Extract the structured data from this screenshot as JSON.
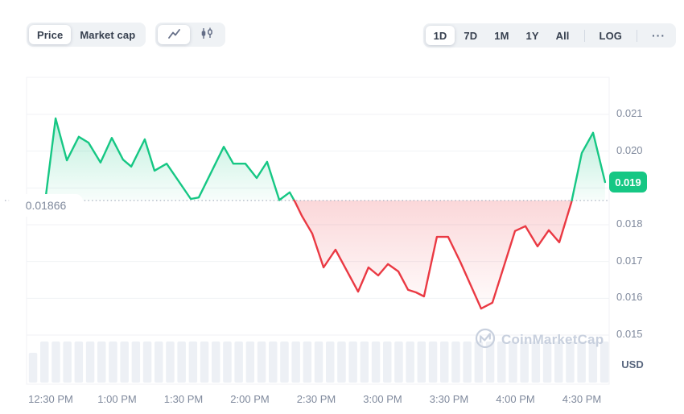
{
  "toolbar": {
    "price_label": "Price",
    "market_cap_label": "Market cap",
    "chart_type_selected": "line",
    "ranges": [
      "1D",
      "7D",
      "1M",
      "1Y",
      "All"
    ],
    "selected_range": "1D",
    "log_label": "LOG",
    "more_label": "···"
  },
  "chart_data": {
    "type": "area",
    "title": "",
    "xlabel": "",
    "ylabel": "USD",
    "x_axis": {
      "tick_labels": [
        "12:30 PM",
        "1:00 PM",
        "1:30 PM",
        "2:00 PM",
        "2:30 PM",
        "3:00 PM",
        "3:30 PM",
        "4:00 PM",
        "4:30 PM"
      ],
      "tick_minutes": [
        30,
        60,
        90,
        120,
        150,
        180,
        210,
        240,
        270
      ]
    },
    "y_axis": {
      "tick_labels": [
        "0.021",
        "0.020",
        "0.019",
        "0.018",
        "0.017",
        "0.016",
        "0.015"
      ],
      "tick_prices": [
        0.021,
        0.02,
        0.019,
        0.018,
        0.017,
        0.016,
        0.015
      ],
      "ylim": [
        0.0147,
        0.0217
      ],
      "unit": "USD"
    },
    "baseline": {
      "label": "0.01866",
      "price": 0.01866
    },
    "current_price": {
      "label": "0.019",
      "price": 0.01916
    },
    "colors": {
      "up": "#16c784",
      "down": "#ea3943",
      "grid": "#f0f2f5",
      "dotted": "#a9b1c0",
      "volume": "#edf0f5"
    },
    "watermark": "CoinMarketCap",
    "series": [
      {
        "m": 27.8,
        "p": 0.01879
      },
      {
        "m": 32.2,
        "p": 0.02089
      },
      {
        "m": 37.3,
        "p": 0.01975
      },
      {
        "m": 42.7,
        "p": 0.02039
      },
      {
        "m": 47.1,
        "p": 0.02023
      },
      {
        "m": 52.5,
        "p": 0.01969
      },
      {
        "m": 57.6,
        "p": 0.02036
      },
      {
        "m": 62.7,
        "p": 0.01977
      },
      {
        "m": 66.4,
        "p": 0.01958
      },
      {
        "m": 72.5,
        "p": 0.02032
      },
      {
        "m": 76.9,
        "p": 0.01947
      },
      {
        "m": 82.4,
        "p": 0.01966
      },
      {
        "m": 93.3,
        "p": 0.0187
      },
      {
        "m": 96.9,
        "p": 0.01874
      },
      {
        "m": 108.2,
        "p": 0.02012
      },
      {
        "m": 112.5,
        "p": 0.01966
      },
      {
        "m": 118.0,
        "p": 0.01966
      },
      {
        "m": 123.1,
        "p": 0.01927
      },
      {
        "m": 127.8,
        "p": 0.01971
      },
      {
        "m": 133.3,
        "p": 0.01867
      },
      {
        "m": 138.0,
        "p": 0.01888
      },
      {
        "m": 140.5,
        "p": 0.01861
      },
      {
        "m": 143.5,
        "p": 0.01824
      },
      {
        "m": 148.2,
        "p": 0.01776
      },
      {
        "m": 153.3,
        "p": 0.01684
      },
      {
        "m": 158.7,
        "p": 0.01732
      },
      {
        "m": 168.9,
        "p": 0.01618
      },
      {
        "m": 173.6,
        "p": 0.01684
      },
      {
        "m": 178.0,
        "p": 0.01662
      },
      {
        "m": 182.4,
        "p": 0.01693
      },
      {
        "m": 187.1,
        "p": 0.01673
      },
      {
        "m": 191.5,
        "p": 0.01623
      },
      {
        "m": 195.1,
        "p": 0.01616
      },
      {
        "m": 198.7,
        "p": 0.01605
      },
      {
        "m": 204.5,
        "p": 0.01767
      },
      {
        "m": 209.6,
        "p": 0.01767
      },
      {
        "m": 215.1,
        "p": 0.01699
      },
      {
        "m": 224.5,
        "p": 0.01572
      },
      {
        "m": 229.6,
        "p": 0.01588
      },
      {
        "m": 239.8,
        "p": 0.01783
      },
      {
        "m": 244.5,
        "p": 0.01796
      },
      {
        "m": 250.0,
        "p": 0.01741
      },
      {
        "m": 255.1,
        "p": 0.01785
      },
      {
        "m": 259.8,
        "p": 0.01752
      },
      {
        "m": 265.3,
        "p": 0.01861
      },
      {
        "m": 270.0,
        "p": 0.01995
      },
      {
        "m": 275.1,
        "p": 0.0205
      },
      {
        "m": 280.5,
        "p": 0.01916
      }
    ]
  },
  "volume": {
    "bar_count": 51,
    "first_bar_short": true
  }
}
